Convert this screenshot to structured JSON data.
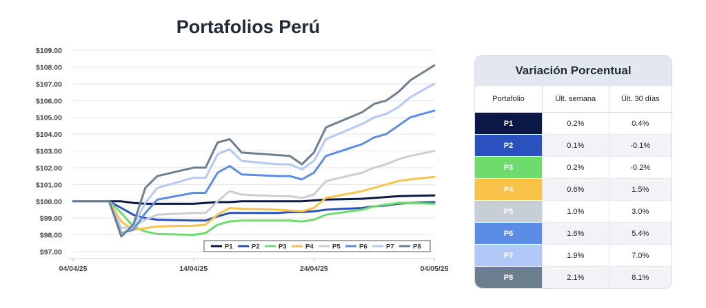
{
  "chart_data": {
    "type": "line",
    "title": "Portafolios Perú",
    "x_ticks": [
      "04/04/25",
      "14/04/25",
      "24/04/25",
      "04/05/25"
    ],
    "y_ticks": [
      "$97.00",
      "$98.00",
      "$99.00",
      "$100.00",
      "$101.00",
      "$102.00",
      "$103.00",
      "$104.00",
      "$105.00",
      "$106.00",
      "$107.00",
      "$108.00",
      "$109.00"
    ],
    "ylim": [
      97,
      109
    ],
    "x_dates": [
      "04/04/25",
      "07/04/25",
      "08/04/25",
      "09/04/25",
      "10/04/25",
      "11/04/25",
      "14/04/25",
      "15/04/25",
      "16/04/25",
      "17/04/25",
      "18/04/25",
      "21/04/25",
      "22/04/25",
      "23/04/25",
      "24/04/25",
      "25/04/25",
      "28/04/25",
      "29/04/25",
      "30/04/25",
      "01/05/25",
      "02/05/25",
      "04/05/25"
    ],
    "legend_position": "bottom-right",
    "grid": "horizontal",
    "series": [
      {
        "name": "P1",
        "color": "#0b1747",
        "values": [
          100,
          100,
          100,
          99.9,
          99.85,
          99.85,
          99.85,
          99.9,
          99.95,
          99.95,
          100,
          100,
          100,
          100,
          100.05,
          100.1,
          100.15,
          100.2,
          100.25,
          100.3,
          100.32,
          100.35
        ]
      },
      {
        "name": "P2",
        "color": "#2a52be",
        "values": [
          100,
          100,
          99.6,
          99.2,
          99.0,
          98.9,
          98.85,
          98.85,
          99.1,
          99.3,
          99.3,
          99.3,
          99.35,
          99.35,
          99.4,
          99.5,
          99.6,
          99.7,
          99.75,
          99.85,
          99.9,
          99.95
        ]
      },
      {
        "name": "P3",
        "color": "#6ddc6d",
        "values": [
          100,
          100,
          99.3,
          98.5,
          98.2,
          98.05,
          98.0,
          98.1,
          98.6,
          98.8,
          98.85,
          98.85,
          98.85,
          98.8,
          98.9,
          99.2,
          99.5,
          99.7,
          99.8,
          99.9,
          99.9,
          99.85
        ]
      },
      {
        "name": "P4",
        "color": "#f9c349",
        "values": [
          100,
          100,
          98.8,
          98.3,
          98.4,
          98.5,
          98.55,
          98.6,
          99.2,
          99.6,
          99.55,
          99.5,
          99.45,
          99.4,
          99.6,
          100.2,
          100.6,
          100.8,
          101.0,
          101.2,
          101.3,
          101.45
        ]
      },
      {
        "name": "P5",
        "color": "#c8ced6",
        "values": [
          100,
          100,
          98.4,
          98.5,
          98.9,
          99.2,
          99.3,
          99.3,
          100.0,
          100.6,
          100.4,
          100.3,
          100.3,
          100.2,
          100.4,
          101.2,
          101.7,
          102.0,
          102.2,
          102.5,
          102.7,
          103.0
        ]
      },
      {
        "name": "P6",
        "color": "#5b8de6",
        "values": [
          100,
          100,
          98.1,
          98.3,
          99.3,
          100.1,
          100.5,
          100.5,
          101.7,
          102.1,
          101.6,
          101.5,
          101.5,
          101.3,
          101.7,
          102.7,
          103.4,
          103.8,
          104.0,
          104.5,
          105.0,
          105.4
        ]
      },
      {
        "name": "P7",
        "color": "#b2c9f7",
        "values": [
          100,
          100,
          98.0,
          98.5,
          99.9,
          100.8,
          101.4,
          101.4,
          102.8,
          103.1,
          102.4,
          102.2,
          102.2,
          101.9,
          102.4,
          103.7,
          104.6,
          105.0,
          105.2,
          105.6,
          106.2,
          107.0
        ]
      },
      {
        "name": "P8",
        "color": "#6d7e8e",
        "values": [
          100,
          100,
          97.9,
          98.6,
          100.8,
          101.5,
          102.0,
          102.0,
          103.5,
          103.7,
          102.9,
          102.75,
          102.7,
          102.2,
          102.9,
          104.4,
          105.3,
          105.8,
          106.0,
          106.5,
          107.2,
          108.1
        ]
      }
    ]
  },
  "table": {
    "title": "Variación Porcentual",
    "headers": [
      "Portafolio",
      "Últ. semana",
      "Últ. 30 días"
    ],
    "rows": [
      {
        "name": "P1",
        "color": "#0b1747",
        "week": "0.2%",
        "month": "0.4%"
      },
      {
        "name": "P2",
        "color": "#2a52be",
        "week": "0.1%",
        "month": "-0.1%"
      },
      {
        "name": "P3",
        "color": "#6ddc6d",
        "week": "0.2%",
        "month": "-0.2%"
      },
      {
        "name": "P4",
        "color": "#f9c349",
        "week": "0.6%",
        "month": "1.5%"
      },
      {
        "name": "P5",
        "color": "#c8ced6",
        "week": "1.0%",
        "month": "3.0%"
      },
      {
        "name": "P6",
        "color": "#5b8de6",
        "week": "1.6%",
        "month": "5.4%"
      },
      {
        "name": "P7",
        "color": "#b2c9f7",
        "week": "1.9%",
        "month": "7.0%"
      },
      {
        "name": "P8",
        "color": "#6d7e8e",
        "week": "2.1%",
        "month": "8.1%"
      }
    ]
  }
}
